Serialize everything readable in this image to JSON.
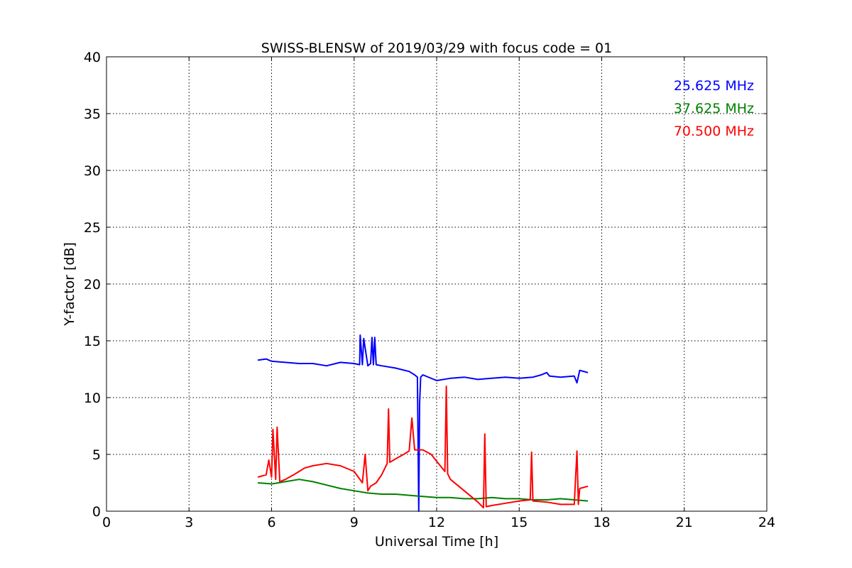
{
  "chart_data": {
    "type": "line",
    "title": "SWISS-BLENSW of 2019/03/29 with focus code = 01",
    "xlabel": "Universal Time [h]",
    "ylabel": "Y-factor [dB]",
    "xlim": [
      0,
      24
    ],
    "ylim": [
      0,
      40
    ],
    "xticks": [
      0,
      3,
      6,
      9,
      12,
      15,
      18,
      21,
      24
    ],
    "yticks": [
      0,
      5,
      10,
      15,
      20,
      25,
      30,
      35,
      40
    ],
    "grid": true,
    "legend_position": "top-right",
    "series": [
      {
        "name": "25.625 MHz",
        "color": "#0000ff",
        "x": [
          5.5,
          5.8,
          6.0,
          6.5,
          7.0,
          7.5,
          8.0,
          8.5,
          9.0,
          9.2,
          9.22,
          9.3,
          9.35,
          9.5,
          9.6,
          9.65,
          9.7,
          9.75,
          9.8,
          10.0,
          10.5,
          11.0,
          11.2,
          11.3,
          11.35,
          11.38,
          11.42,
          11.5,
          12.0,
          12.5,
          13.0,
          13.5,
          14.0,
          14.5,
          15.0,
          15.5,
          15.8,
          16.0,
          16.1,
          16.5,
          17.0,
          17.1,
          17.2,
          17.5
        ],
        "values": [
          13.3,
          13.4,
          13.2,
          13.1,
          13.0,
          13.0,
          12.8,
          13.1,
          13.0,
          12.9,
          15.5,
          12.9,
          15.2,
          12.8,
          13.0,
          15.3,
          12.9,
          15.3,
          12.9,
          12.8,
          12.6,
          12.3,
          12.0,
          11.8,
          0.0,
          9.5,
          11.8,
          12.0,
          11.5,
          11.7,
          11.8,
          11.6,
          11.7,
          11.8,
          11.7,
          11.8,
          12.0,
          12.2,
          11.9,
          11.8,
          11.9,
          11.3,
          12.4,
          12.2
        ]
      },
      {
        "name": "37.625 MHz",
        "color": "#008000",
        "x": [
          5.5,
          6.0,
          6.5,
          7.0,
          7.5,
          8.0,
          8.5,
          9.0,
          9.5,
          10.0,
          10.5,
          11.0,
          11.5,
          12.0,
          12.5,
          13.0,
          13.5,
          14.0,
          14.5,
          15.0,
          15.5,
          16.0,
          16.5,
          17.0,
          17.5
        ],
        "values": [
          2.5,
          2.4,
          2.6,
          2.8,
          2.6,
          2.3,
          2.0,
          1.8,
          1.6,
          1.5,
          1.5,
          1.4,
          1.3,
          1.2,
          1.2,
          1.1,
          1.1,
          1.2,
          1.1,
          1.1,
          1.0,
          1.0,
          1.1,
          1.0,
          0.9
        ]
      },
      {
        "name": "70.500 MHz",
        "color": "#ff0000",
        "x": [
          5.5,
          5.8,
          5.9,
          6.0,
          6.05,
          6.15,
          6.2,
          6.3,
          6.5,
          6.8,
          7.0,
          7.2,
          7.5,
          8.0,
          8.5,
          9.0,
          9.3,
          9.4,
          9.5,
          9.6,
          9.8,
          10.0,
          10.2,
          10.25,
          10.3,
          10.5,
          10.8,
          11.0,
          11.1,
          11.2,
          11.5,
          11.8,
          12.0,
          12.3,
          12.35,
          12.4,
          12.5,
          13.0,
          13.5,
          13.7,
          13.75,
          13.8,
          14.0,
          14.5,
          15.0,
          15.4,
          15.45,
          15.5,
          16.0,
          16.5,
          17.0,
          17.1,
          17.15,
          17.2,
          17.5
        ],
        "values": [
          3.0,
          3.2,
          4.5,
          3.0,
          7.2,
          2.8,
          7.4,
          2.6,
          2.8,
          3.2,
          3.5,
          3.8,
          4.0,
          4.2,
          4.0,
          3.5,
          2.5,
          5.0,
          1.8,
          2.2,
          2.5,
          3.2,
          4.2,
          9.0,
          4.3,
          4.6,
          5.0,
          5.3,
          8.2,
          5.4,
          5.4,
          5.0,
          4.4,
          3.5,
          11.0,
          3.3,
          2.8,
          1.8,
          0.8,
          0.3,
          6.8,
          0.4,
          0.5,
          0.7,
          0.9,
          1.0,
          5.2,
          0.9,
          0.8,
          0.6,
          0.6,
          5.3,
          0.6,
          2.0,
          2.2
        ]
      }
    ]
  }
}
